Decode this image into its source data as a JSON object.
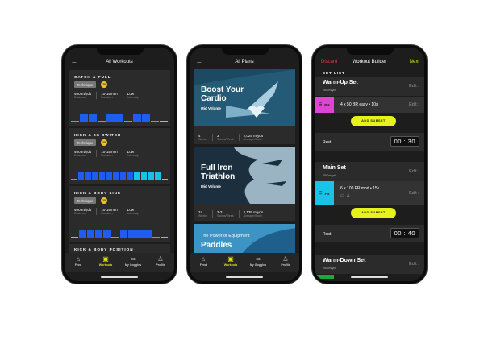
{
  "colors": {
    "hard": "#1f5df0",
    "easy": "#17c3e6",
    "mod": "#17c3e6",
    "warm": "#9fd61a",
    "accent": "#e6f21a",
    "discard": "#e0353a",
    "br": "#e044d6",
    "fr": "#17c3e6",
    "cool": "#1aa844"
  },
  "workouts": {
    "title": "All Workouts",
    "back_icon": "arrow-left-icon",
    "items": [
      {
        "title": "CATCH & PULL",
        "badge": "Technique",
        "level": "25",
        "distance": "400 m/yds",
        "distance_label": "Distance",
        "duration": "10-15 min",
        "duration_label": "Duration",
        "intensity": "Low",
        "intensity_label": "Intensity",
        "bars": [
          "easy",
          "hard",
          "hard",
          "easy",
          "hard",
          "hard",
          "easy",
          "hard",
          "hard",
          "easy",
          "warm"
        ]
      },
      {
        "title": "KICK & 6K SWITCH",
        "badge": "Technique",
        "level": "25",
        "distance": "400 m/yds",
        "distance_label": "Distance",
        "duration": "10-15 min",
        "duration_label": "Duration",
        "intensity": "Low",
        "intensity_label": "Intensity",
        "bars": [
          "easy",
          "hard",
          "hard",
          "hard",
          "hard",
          "hard",
          "hard",
          "hard",
          "hard",
          "mod",
          "mod",
          "mod",
          "mod",
          "warm"
        ]
      },
      {
        "title": "KICK & BODY LINE",
        "badge": "Technique",
        "level": "25",
        "distance": "400 m/yds",
        "distance_label": "Distance",
        "duration": "10-15 min",
        "duration_label": "Duration",
        "intensity": "Low",
        "intensity_label": "Intensity",
        "bars": [
          "warm",
          "hard",
          "hard",
          "hard",
          "hard",
          "easy",
          "hard",
          "hard",
          "hard",
          "hard",
          "easy",
          "warm"
        ]
      },
      {
        "title": "KICK & BODY POSITION"
      }
    ]
  },
  "nav": [
    {
      "label": "Feed",
      "icon": "home-icon",
      "glyph": "⌂"
    },
    {
      "label": "Workouts",
      "icon": "workouts-icon",
      "glyph": "▣"
    },
    {
      "label": "My Goggles",
      "icon": "goggles-icon",
      "glyph": "∞"
    },
    {
      "label": "Profile",
      "icon": "profile-icon",
      "glyph": "♙"
    }
  ],
  "plans": {
    "title": "All Plans",
    "items": [
      {
        "title1": "Boost Your",
        "title2": "Cardio",
        "volume": "Mid Volume",
        "weeks": "4",
        "weeks_label": "Weeks",
        "swims": "3",
        "swims_label": "Swims/Week",
        "avg": "2,025 m/yds",
        "avg_label": "Average/Swim"
      },
      {
        "title1": "Full Iron",
        "title2": "Triathlon",
        "volume": "Mid Volume",
        "weeks": "24",
        "weeks_label": "Weeks",
        "swims": "2-3",
        "swims_label": "Swims/Week",
        "avg": "2,135 m/yds",
        "avg_label": "Average/Swim"
      },
      {
        "kicker": "The Power of Equipment",
        "title1": "Paddles"
      }
    ]
  },
  "builder": {
    "discard": "Discard",
    "title": "Workout Builder",
    "next": "Next",
    "set_list": "SET LIST",
    "edit": "Edit",
    "add_subset": "ADD SUBSET",
    "rest_label": "Rest",
    "sets": [
      {
        "name": "Warm-Up Set",
        "distance": "200 m/yd",
        "stroke": "BR",
        "subset": "4 x 50 BR easy • 10s",
        "rest": "00 : 30"
      },
      {
        "name": "Main Set",
        "distance": "600 m/yd",
        "stroke": "FR",
        "subset": "6 x 100 FR mod • 15s",
        "rest": "00 : 40"
      },
      {
        "name": "Warm-Down Set",
        "distance": "200 m/yd"
      }
    ]
  }
}
